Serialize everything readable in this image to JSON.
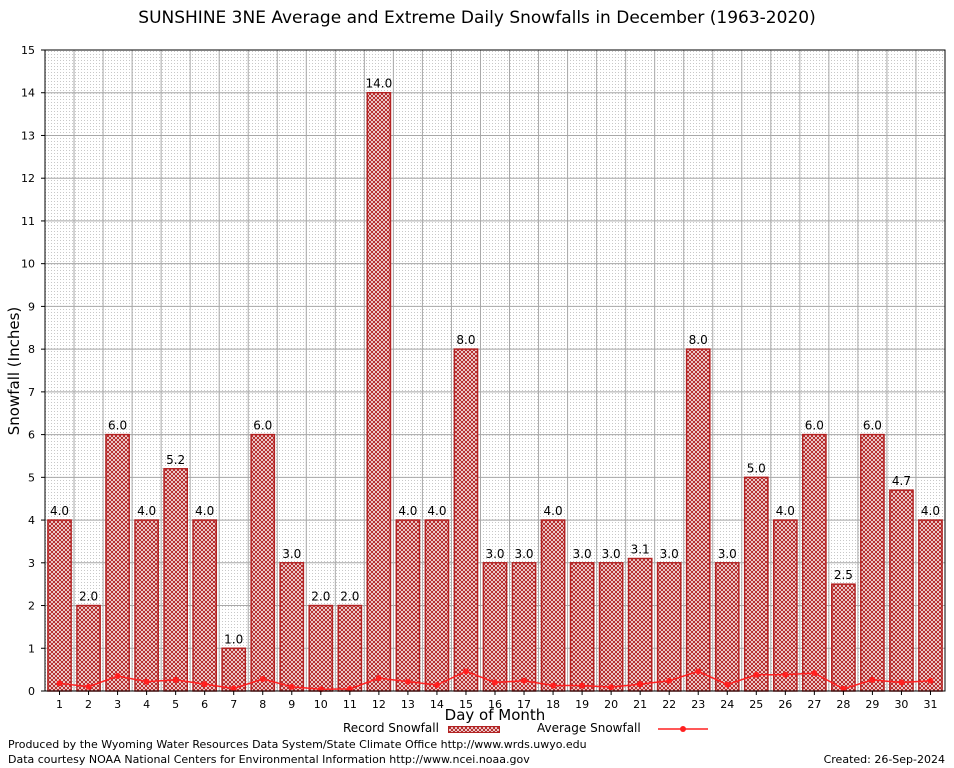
{
  "chart_data": {
    "type": "bar",
    "title": "SUNSHINE 3NE Average and Extreme Daily Snowfalls in December (1963-2020)",
    "xlabel": "Day of Month",
    "ylabel": "Snowfall (Inches)",
    "ylim": [
      0,
      15
    ],
    "yticks": [
      "0",
      "1",
      "2",
      "3",
      "4",
      "5",
      "6",
      "7",
      "8",
      "9",
      "10",
      "11",
      "12",
      "13",
      "14",
      "15"
    ],
    "categories": [
      "1",
      "2",
      "3",
      "4",
      "5",
      "6",
      "7",
      "8",
      "9",
      "10",
      "11",
      "12",
      "13",
      "14",
      "15",
      "16",
      "17",
      "18",
      "19",
      "20",
      "21",
      "22",
      "23",
      "24",
      "25",
      "26",
      "27",
      "28",
      "29",
      "30",
      "31"
    ],
    "series": [
      {
        "name": "Record Snowfall",
        "type": "bar",
        "color": "#b22222",
        "values": [
          4.0,
          2.0,
          6.0,
          4.0,
          5.2,
          4.0,
          1.0,
          6.0,
          3.0,
          2.0,
          2.0,
          14.0,
          4.0,
          4.0,
          8.0,
          3.0,
          3.0,
          4.0,
          3.0,
          3.0,
          3.1,
          3.0,
          8.0,
          3.0,
          5.0,
          4.0,
          6.0,
          2.5,
          6.0,
          4.7,
          4.0
        ],
        "labels": [
          "4.0",
          "2.0",
          "6.0",
          "4.0",
          "5.2",
          "4.0",
          "1.0",
          "6.0",
          "3.0",
          "2.0",
          "2.0",
          "14.0",
          "4.0",
          "4.0",
          "8.0",
          "3.0",
          "3.0",
          "4.0",
          "3.0",
          "3.0",
          "3.1",
          "3.0",
          "8.0",
          "3.0",
          "5.0",
          "4.0",
          "6.0",
          "2.5",
          "6.0",
          "4.7",
          "4.0"
        ]
      },
      {
        "name": "Average Snowfall",
        "type": "line",
        "color": "#ff2020",
        "values": [
          0.18,
          0.1,
          0.35,
          0.22,
          0.26,
          0.16,
          0.06,
          0.28,
          0.1,
          0.04,
          0.05,
          0.3,
          0.22,
          0.14,
          0.46,
          0.2,
          0.24,
          0.13,
          0.13,
          0.09,
          0.16,
          0.24,
          0.46,
          0.15,
          0.38,
          0.38,
          0.42,
          0.05,
          0.26,
          0.2,
          0.24
        ]
      }
    ],
    "grid": true,
    "legend": "bottom"
  },
  "credits": {
    "line1": "Produced by the Wyoming Water Resources Data System/State Climate Office http://www.wrds.uwyo.edu",
    "line2": "Data courtesy NOAA National Centers for Environmental Information http://www.ncei.noaa.gov",
    "created": "Created:  26-Sep-2024"
  }
}
